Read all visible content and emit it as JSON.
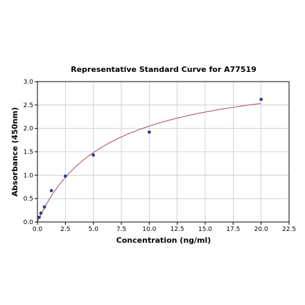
{
  "chart_data": {
    "type": "scatter",
    "title": "Representative Standard Curve for A77519",
    "xlabel": "Concentration (ng/ml)",
    "ylabel": "Absorbance (450nm)",
    "xlim": [
      0,
      22.5
    ],
    "ylim": [
      0,
      3.0
    ],
    "x_ticks": [
      "0.0",
      "2.5",
      "5.0",
      "7.5",
      "10.0",
      "12.5",
      "15.0",
      "17.5",
      "20.0",
      "22.5"
    ],
    "y_ticks": [
      "0.0",
      "0.5",
      "1.0",
      "1.5",
      "2.0",
      "2.5",
      "3.0"
    ],
    "grid": true,
    "series": [
      {
        "x": [
          0.156,
          0.3125,
          0.625,
          1.25,
          2.5,
          5.0,
          10.0,
          20.0
        ],
        "y": [
          0.1,
          0.19,
          0.32,
          0.67,
          0.98,
          1.43,
          1.92,
          2.62
        ],
        "fit": "curve"
      }
    ],
    "colors": {
      "curve": "#b5506a",
      "points": "#2e3f86",
      "grid": "#c8c8c8"
    }
  }
}
